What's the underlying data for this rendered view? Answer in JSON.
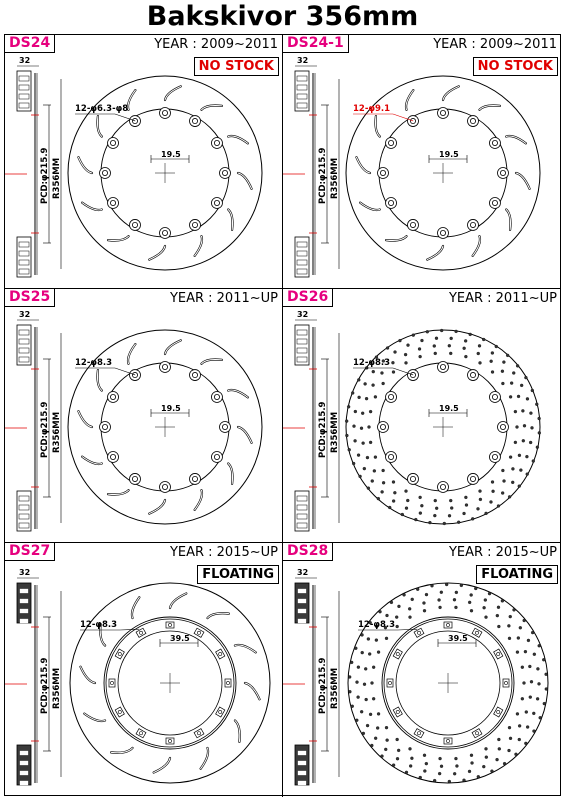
{
  "title": "Bakskivor 356mm",
  "panels": [
    {
      "code": "DS24",
      "year": "YEAR : 2009~2011",
      "badge": "NO STOCK",
      "badge_color": "#e00000",
      "holes": "12-φ6.3-φ8",
      "offset": "19.5",
      "width": "32",
      "pcd": "PCD:φ215.9",
      "radius": "R356MM",
      "pattern": "slotted"
    },
    {
      "code": "DS24-1",
      "year": "YEAR : 2009~2011",
      "badge": "NO STOCK",
      "badge_color": "#e00000",
      "holes": "12-φ9.1",
      "offset": "19.5",
      "width": "32",
      "pcd": "PCD:φ215.9",
      "radius": "R356MM",
      "pattern": "slotted"
    },
    {
      "code": "DS25",
      "year": "YEAR : 2011~UP",
      "badge": "",
      "badge_color": "",
      "holes": "12-φ8.3",
      "offset": "19.5",
      "width": "32",
      "pcd": "PCD:φ215.9",
      "radius": "R356MM",
      "pattern": "slotted"
    },
    {
      "code": "DS26",
      "year": "YEAR : 2011~UP",
      "badge": "",
      "badge_color": "",
      "holes": "12-φ8.3",
      "offset": "19.5",
      "width": "32",
      "pcd": "PCD:φ215.9",
      "radius": "R356MM",
      "pattern": "drilled"
    },
    {
      "code": "DS27",
      "year": "YEAR : 2015~UP",
      "badge": "FLOATING",
      "badge_color": "#000000",
      "holes": "12-φ8.3",
      "offset": "39.5",
      "width": "32",
      "pcd": "PCD:φ215.9",
      "radius": "R356MM",
      "pattern": "floating-slotted"
    },
    {
      "code": "DS28",
      "year": "YEAR : 2015~UP",
      "badge": "FLOATING",
      "badge_color": "#000000",
      "holes": "12-φ8.3",
      "offset": "39.5",
      "width": "32",
      "pcd": "PCD:φ215.9",
      "radius": "R356MM",
      "pattern": "floating-drilled"
    }
  ]
}
